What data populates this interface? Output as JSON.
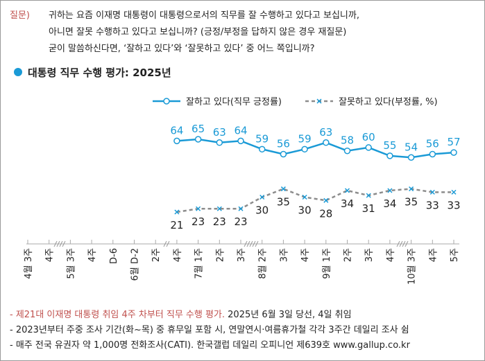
{
  "question": {
    "label": "질문)",
    "lines": [
      "귀하는 요즘 이재명 대통령이 대통령으로서의 직무를 잘 수행하고 있다고 보십니까,",
      "아니면 잘못 수행하고 있다고 보십니까? (긍정/부정을 답하지 않은 경우 재질문)",
      "굳이 말씀하신다면, ‘잘하고 있다’와 ‘잘못하고 있다’ 중 어느 쪽입니까?"
    ]
  },
  "chart_data": {
    "type": "line",
    "title": "대통령 직무 수행 평가: 2025년",
    "categories": [
      "4월 3주",
      "4주",
      "5월 3주",
      "4주",
      "D-6",
      "6월 D-2",
      "2주",
      "4주",
      "7월 1주",
      "2주",
      "3주",
      "8월 2주",
      "3주",
      "4주",
      "9월 1주",
      "2주",
      "3주",
      "4주",
      "10월 3주",
      "4주",
      "5주"
    ],
    "series": [
      {
        "name": "잘하고 있다(직무 긍정률)",
        "color": "#1a9ad6",
        "values": [
          null,
          null,
          null,
          null,
          null,
          null,
          null,
          64,
          65,
          63,
          64,
          59,
          56,
          59,
          63,
          58,
          60,
          55,
          54,
          56,
          57
        ]
      },
      {
        "name": "잘못하고 있다(부정률, %)",
        "color": "#8c8c8c",
        "values": [
          null,
          null,
          null,
          null,
          null,
          null,
          null,
          21,
          23,
          23,
          23,
          30,
          35,
          30,
          28,
          34,
          31,
          34,
          35,
          33,
          33
        ]
      }
    ]
  },
  "notes": [
    [
      "- 제21대 이재명 대통령 취임 4주 차부터 직무 수행 평가.",
      " 2025년 6월 3일 당선, 4일 취임"
    ],
    [
      "- 2023년부터 주중 조사 기간(화~목) 중 휴무일 포함 시, 연말연시·여름휴가철 각각 3주간 데일리 조사 쉼"
    ],
    [
      "- 매주 전국 유권자 약 1,000명 전화조사(CATI). 한국갤럽 데일리 오피니언 제639호 www.gallup.co.kr"
    ]
  ]
}
